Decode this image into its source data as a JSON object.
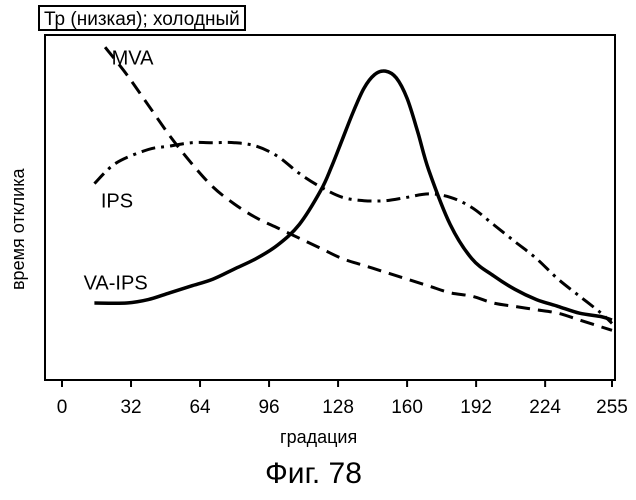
{
  "caption": "Фиг. 78",
  "chart_data": {
    "type": "line",
    "title": "Тр (низкая); холодный",
    "xlabel": "градация",
    "ylabel": "время отклика",
    "xlim": [
      0,
      255
    ],
    "ylim": [
      0,
      100
    ],
    "y_ticks_shown": false,
    "grid": false,
    "legend": "inline labels",
    "x_ticks": [
      {
        "value": 0,
        "label": "0"
      },
      {
        "value": 32,
        "label": "32"
      },
      {
        "value": 64,
        "label": "64"
      },
      {
        "value": 96,
        "label": "96"
      },
      {
        "value": 128,
        "label": "128"
      },
      {
        "value": 160,
        "label": "160"
      },
      {
        "value": 192,
        "label": "192"
      },
      {
        "value": 224,
        "label": "224"
      },
      {
        "value": 255,
        "label": "255"
      }
    ],
    "series": [
      {
        "name": "MVA",
        "line_style": "dashed",
        "x": [
          20,
          30,
          40,
          50,
          60,
          70,
          80,
          90,
          100,
          110,
          120,
          130,
          140,
          150,
          160,
          170,
          180,
          190,
          200,
          210,
          220,
          230,
          240,
          250,
          255
        ],
        "y": [
          97,
          89,
          80,
          71,
          63,
          56,
          51,
          47,
          44,
          41,
          38,
          35,
          33,
          31,
          29,
          27,
          25,
          24,
          22,
          21,
          20,
          19,
          17,
          15,
          14
        ]
      },
      {
        "name": "IPS",
        "line_style": "dash-dot",
        "x": [
          15,
          25,
          40,
          50,
          60,
          70,
          80,
          90,
          100,
          110,
          120,
          130,
          140,
          150,
          160,
          170,
          180,
          190,
          200,
          210,
          220,
          230,
          240,
          250,
          255
        ],
        "y": [
          57,
          63,
          67,
          68,
          69,
          69,
          69,
          68,
          65,
          60,
          56,
          53,
          52,
          52,
          53,
          54,
          53,
          50,
          45,
          40,
          35,
          29,
          24,
          19,
          16
        ]
      },
      {
        "name": "VA-IPS",
        "line_style": "solid",
        "x": [
          15,
          30,
          40,
          50,
          60,
          70,
          80,
          90,
          100,
          110,
          120,
          125,
          130,
          135,
          140,
          145,
          150,
          155,
          160,
          165,
          170,
          180,
          190,
          200,
          210,
          220,
          230,
          240,
          250,
          255
        ],
        "y": [
          22,
          22,
          23,
          25,
          27,
          29,
          32,
          35,
          39,
          45,
          55,
          62,
          70,
          78,
          85,
          89,
          90,
          88,
          82,
          72,
          61,
          45,
          35,
          30,
          26,
          23,
          21,
          19,
          18,
          17
        ]
      }
    ]
  }
}
